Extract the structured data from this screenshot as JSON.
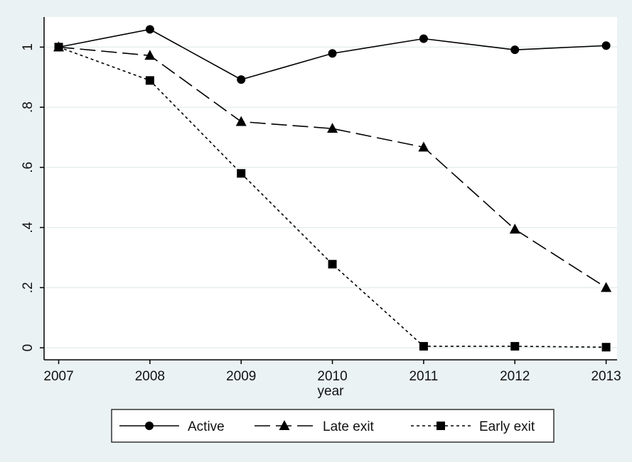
{
  "chart_data": {
    "type": "line",
    "x_label": "year",
    "x": [
      2007,
      2008,
      2009,
      2010,
      2011,
      2012,
      2013
    ],
    "series": [
      {
        "name": "Active",
        "color": "#000000",
        "marker": "circle",
        "dash": "solid",
        "values": [
          1,
          1.059,
          0.892,
          0.979,
          1.028,
          0.991,
          1.005
        ]
      },
      {
        "name": "Late exit",
        "color": "#000000",
        "marker": "triangle",
        "dash": "long",
        "values": [
          1,
          0.972,
          0.752,
          0.729,
          0.667,
          0.394,
          0.2
        ]
      },
      {
        "name": "Early exit",
        "color": "#000000",
        "marker": "square",
        "dash": "short",
        "values": [
          1,
          0.889,
          0.58,
          0.278,
          0.005,
          0.005,
          0.002
        ]
      }
    ],
    "xlim": [
      2006.84,
      2013.12
    ],
    "xticks": [
      2007,
      2008,
      2009,
      2010,
      2011,
      2012,
      2013
    ],
    "ylim": [
      -0.04,
      1.1
    ],
    "yticks": [
      0,
      {
        "value": 0.2,
        "label": ".2"
      },
      {
        "value": 0.4,
        "label": ".4"
      },
      {
        "value": 0.6,
        "label": ".6"
      },
      {
        "value": 0.8,
        "label": ".8"
      },
      1
    ],
    "grid": true
  }
}
